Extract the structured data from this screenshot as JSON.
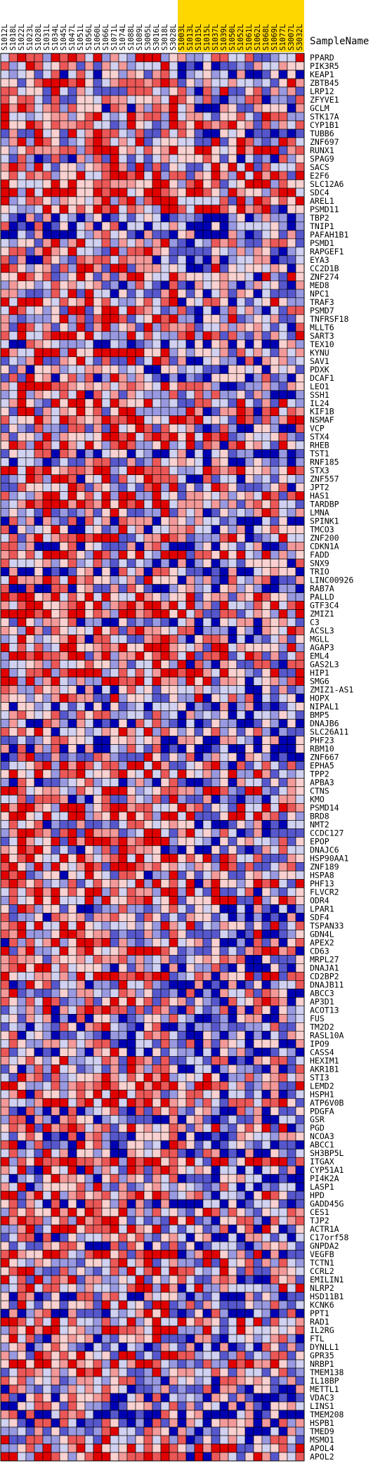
{
  "chart_data": {
    "type": "heatmap",
    "column_header": "SampleName",
    "samples": [
      "S1012L",
      "S1018L",
      "S1022L",
      "S1023L",
      "S1028L",
      "S1031L",
      "S1034L",
      "S1045L",
      "S1047L",
      "S1051L",
      "S1056L",
      "S1060L",
      "S1066L",
      "S1071L",
      "S1074L",
      "S1088L",
      "S1089L",
      "S3005L",
      "S3016L",
      "S3018L",
      "S3028L",
      "S1003L",
      "S1013L",
      "S1015L",
      "S1015L",
      "S1037L",
      "S1039L",
      "S1050L",
      "S1052L",
      "S1061L",
      "S1062L",
      "S1068L",
      "S1069L",
      "S1077L",
      "S3007L",
      "S3032L"
    ],
    "sample_highlight": [
      "none",
      "none",
      "none",
      "none",
      "none",
      "none",
      "none",
      "none",
      "none",
      "none",
      "none",
      "none",
      "none",
      "none",
      "none",
      "none",
      "none",
      "none",
      "none",
      "none",
      "none",
      "gold",
      "gold",
      "gold",
      "gold",
      "gold",
      "gold",
      "gold",
      "gold",
      "gold",
      "gold",
      "gold",
      "gold",
      "gold",
      "gold",
      "gold"
    ],
    "genes": [
      "PPARD",
      "PIK3R5",
      "KEAP1",
      "ZBTB45",
      "LRP12",
      "ZFYVE1",
      "GCLM",
      "STK17A",
      "CYP1B1",
      "TUBB6",
      "ZNF697",
      "RUNX1",
      "SPAG9",
      "SACS",
      "E2F6",
      "SLC12A6",
      "SDC4",
      "AREL1",
      "PSMD11",
      "TBP2",
      "TNIP1",
      "PAFAH1B1",
      "PSMD1",
      "RAPGEF1",
      "EYA3",
      "CC2D1B",
      "ZNF274",
      "MED8",
      "NPC1",
      "TRAF3",
      "PSMD7",
      "TNFRSF18",
      "MLLT6",
      "SART3",
      "TEX10",
      "KYNU",
      "SAV1",
      "PDXK",
      "DCAF1",
      "LEO1",
      "SSH1",
      "IL24",
      "KIF1B",
      "NSMAF",
      "VCP",
      "STX4",
      "RHEB",
      "TST1",
      "RNF185",
      "STX3",
      "ZNF557",
      "JPT2",
      "HAS1",
      "TARDBP",
      "LMNA",
      "SPINK1",
      "TMCO3",
      "ZNF200",
      "CDKN1A",
      "FADD",
      "SNX9",
      "TRIO",
      "LINC00926",
      "RAB7A",
      "PALLD",
      "GTF3C4",
      "ZMIZ1",
      "C3",
      "ACSL3",
      "MGLL",
      "AGAP3",
      "EML4",
      "GAS2L3",
      "HIP1",
      "SMG6",
      "ZMIZ1-AS1",
      "HOPX",
      "NIPAL1",
      "BMP5",
      "DNAJB6",
      "SLC26A11",
      "PHF23",
      "RBM10",
      "ZNF667",
      "EPHA5",
      "TPP2",
      "APBA3",
      "CTNS",
      "KMO",
      "PSMD14",
      "BRD8",
      "NMT2",
      "CCDC127",
      "EPOP",
      "DNAJC6",
      "HSP90AA1",
      "ZNF189",
      "HSPA8",
      "PHF13",
      "FLVCR2",
      "ODR4",
      "LPAR1",
      "SDF4",
      "TSPAN33",
      "GDN4L",
      "APEX2",
      "CD63",
      "MRPL27",
      "DNAJA1",
      "CD2BP2",
      "DNAJB11",
      "ABCC3",
      "AP3D1",
      "ACOT13",
      "FUS",
      "TM2D2",
      "RASL10A",
      "IPO9",
      "CASS4",
      "HEXIM1",
      "AKR1B1",
      "STI3",
      "LEMD2",
      "HSPH1",
      "ATP6V0B",
      "PDGFA",
      "GSR",
      "PGD",
      "NCOA3",
      "ABCC1",
      "SH3BP5L",
      "ITGAX",
      "CYP51A1",
      "PI4K2A",
      "LASP1",
      "HPD",
      "GADD45G",
      "CES1",
      "TJP2",
      "ACTR1A",
      "C17orf58",
      "GNPDA2",
      "VEGFB",
      "TCTN1",
      "CCRL2",
      "EMILIN1",
      "NLRP2",
      "HSD11B1",
      "KCNK6",
      "PPT1",
      "RAD1",
      "IL2RG",
      "FTL",
      "DYNLL1",
      "GPR35",
      "NRBP1",
      "TMEM138",
      "IL18BP",
      "METTL1",
      "VDAC3",
      "LINS1",
      "TMEM208",
      "HSPB1",
      "TMED9",
      "MSMO1",
      "APOL4",
      "APOL2"
    ],
    "color_scale": {
      "low": "#0000b3",
      "mid": "#ffffff",
      "high": "#e00000"
    },
    "value_range": [
      -1,
      1
    ],
    "cell_grid": true,
    "values_note_seed": 0
  }
}
